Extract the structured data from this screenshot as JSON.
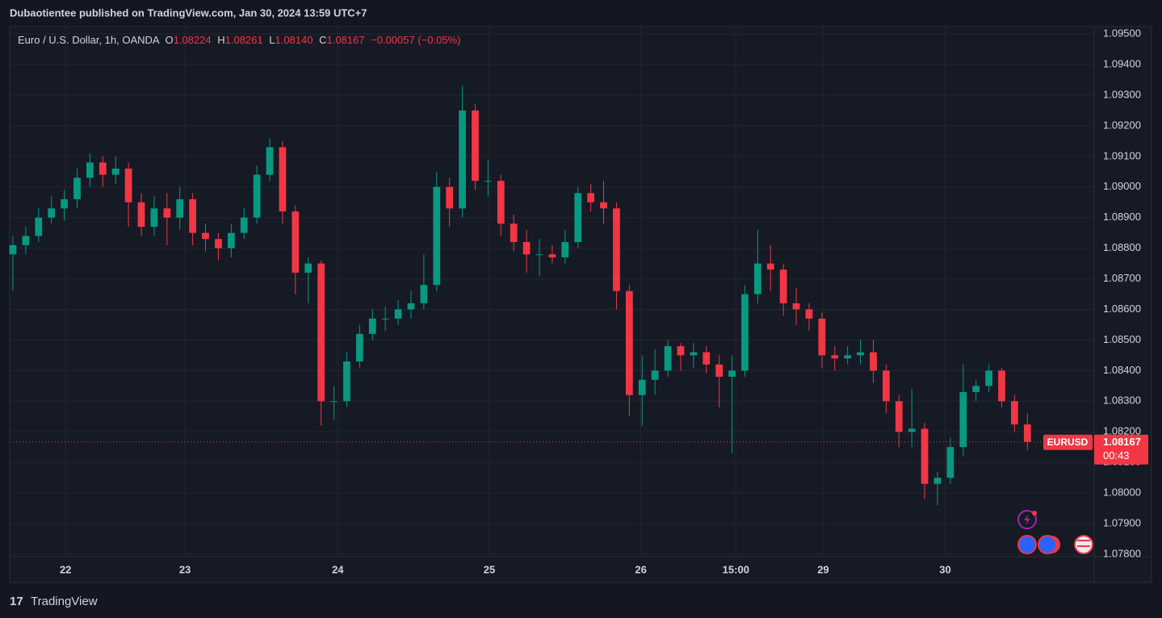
{
  "header": {
    "published": "Dubaotientee published on TradingView.com, Jan 30, 2024 13:59 UTC+7"
  },
  "chart_data": {
    "type": "candlestick",
    "legend": {
      "symbol": "Euro / U.S. Dollar, 1h, OANDA",
      "o_label": "O",
      "o": "1.08224",
      "h_label": "H",
      "h": "1.08261",
      "l_label": "L",
      "l": "1.08140",
      "c_label": "C",
      "c": "1.08167",
      "change": "−0.00057 (−0.05%)"
    },
    "up_color": "#089981",
    "down_color": "#f23645",
    "candles": [
      [
        1.0878,
        1.0884,
        1.0866,
        1.0881
      ],
      [
        1.0881,
        1.0887,
        1.0878,
        1.0884
      ],
      [
        1.0884,
        1.0893,
        1.0882,
        1.089
      ],
      [
        1.089,
        1.0897,
        1.0888,
        1.0893
      ],
      [
        1.0893,
        1.0899,
        1.0889,
        1.0896
      ],
      [
        1.0896,
        1.0906,
        1.0893,
        1.0903
      ],
      [
        1.0903,
        1.0911,
        1.09,
        1.0908
      ],
      [
        1.0908,
        1.091,
        1.09,
        1.0904
      ],
      [
        1.0904,
        1.091,
        1.0901,
        1.0906
      ],
      [
        1.0906,
        1.0908,
        1.0887,
        1.0895
      ],
      [
        1.0895,
        1.0898,
        1.0884,
        1.0887
      ],
      [
        1.0887,
        1.0897,
        1.0884,
        1.0893
      ],
      [
        1.0893,
        1.0898,
        1.0881,
        1.089
      ],
      [
        1.089,
        1.09,
        1.0886,
        1.0896
      ],
      [
        1.0896,
        1.0898,
        1.0881,
        1.0885
      ],
      [
        1.0885,
        1.0888,
        1.0879,
        1.0883
      ],
      [
        1.0883,
        1.0885,
        1.0876,
        1.088
      ],
      [
        1.088,
        1.0888,
        1.0877,
        1.0885
      ],
      [
        1.0885,
        1.0893,
        1.0883,
        1.089
      ],
      [
        1.089,
        1.0907,
        1.0888,
        1.0904
      ],
      [
        1.0904,
        1.0916,
        1.0902,
        1.0913
      ],
      [
        1.0913,
        1.0915,
        1.0888,
        1.0892
      ],
      [
        1.0892,
        1.0894,
        1.0865,
        1.0872
      ],
      [
        1.0872,
        1.0877,
        1.0862,
        1.0875
      ],
      [
        1.0875,
        1.0876,
        1.0822,
        1.083
      ],
      [
        1.083,
        1.0835,
        1.0824,
        1.083
      ],
      [
        1.083,
        1.0846,
        1.0828,
        1.0843
      ],
      [
        1.0843,
        1.0855,
        1.0841,
        1.0852
      ],
      [
        1.0852,
        1.086,
        1.085,
        1.0857
      ],
      [
        1.0857,
        1.0861,
        1.0853,
        1.0857
      ],
      [
        1.0857,
        1.0863,
        1.0855,
        1.086
      ],
      [
        1.086,
        1.0866,
        1.0857,
        1.0862
      ],
      [
        1.0862,
        1.0878,
        1.086,
        1.0868
      ],
      [
        1.0868,
        1.0905,
        1.0866,
        1.09
      ],
      [
        1.09,
        1.0903,
        1.0887,
        1.0893
      ],
      [
        1.0893,
        1.0933,
        1.089,
        1.0925
      ],
      [
        1.0925,
        1.0927,
        1.0899,
        1.0902
      ],
      [
        1.0902,
        1.0909,
        1.0897,
        1.0902
      ],
      [
        1.0902,
        1.0904,
        1.0884,
        1.0888
      ],
      [
        1.0888,
        1.0891,
        1.0879,
        1.0882
      ],
      [
        1.0882,
        1.0886,
        1.0872,
        1.0878
      ],
      [
        1.0878,
        1.0883,
        1.0871,
        1.0878
      ],
      [
        1.0878,
        1.0881,
        1.0875,
        1.0877
      ],
      [
        1.0877,
        1.0886,
        1.0875,
        1.0882
      ],
      [
        1.0882,
        1.09,
        1.088,
        1.0898
      ],
      [
        1.0898,
        1.0901,
        1.0892,
        1.0895
      ],
      [
        1.0895,
        1.0902,
        1.0888,
        1.0893
      ],
      [
        1.0893,
        1.0895,
        1.086,
        1.0866
      ],
      [
        1.0866,
        1.0868,
        1.0825,
        1.0832
      ],
      [
        1.0832,
        1.0845,
        1.0822,
        1.0837
      ],
      [
        1.0837,
        1.0847,
        1.0832,
        1.084
      ],
      [
        1.084,
        1.085,
        1.0838,
        1.0848
      ],
      [
        1.0848,
        1.0849,
        1.084,
        1.0845
      ],
      [
        1.0845,
        1.0849,
        1.0841,
        1.0846
      ],
      [
        1.0846,
        1.0848,
        1.0839,
        1.0842
      ],
      [
        1.0842,
        1.0845,
        1.0828,
        1.0838
      ],
      [
        1.0838,
        1.0845,
        1.0813,
        1.084
      ],
      [
        1.084,
        1.0868,
        1.0838,
        1.0865
      ],
      [
        1.0865,
        1.0886,
        1.0862,
        1.0875
      ],
      [
        1.0875,
        1.0881,
        1.0866,
        1.0873
      ],
      [
        1.0873,
        1.0875,
        1.0858,
        1.0862
      ],
      [
        1.0862,
        1.0867,
        1.0855,
        1.086
      ],
      [
        1.086,
        1.0862,
        1.0853,
        1.0857
      ],
      [
        1.0857,
        1.0859,
        1.0841,
        1.0845
      ],
      [
        1.0845,
        1.0848,
        1.084,
        1.0844
      ],
      [
        1.0844,
        1.0848,
        1.0842,
        1.0845
      ],
      [
        1.0845,
        1.085,
        1.0842,
        1.0846
      ],
      [
        1.0846,
        1.085,
        1.0836,
        1.084
      ],
      [
        1.084,
        1.0842,
        1.0826,
        1.083
      ],
      [
        1.083,
        1.0832,
        1.0815,
        1.082
      ],
      [
        1.082,
        1.0834,
        1.0815,
        1.0821
      ],
      [
        1.0821,
        1.0823,
        1.0798,
        1.0803
      ],
      [
        1.0803,
        1.0807,
        1.0796,
        1.0805
      ],
      [
        1.0805,
        1.0818,
        1.0803,
        1.0815
      ],
      [
        1.0815,
        1.0842,
        1.0812,
        1.0833
      ],
      [
        1.0833,
        1.0837,
        1.083,
        1.0835
      ],
      [
        1.0835,
        1.0842,
        1.0833,
        1.084
      ],
      [
        1.084,
        1.0841,
        1.0828,
        1.083
      ],
      [
        1.083,
        1.0832,
        1.082,
        1.08224
      ],
      [
        1.08224,
        1.08261,
        1.0814,
        1.08167
      ]
    ],
    "xlim": [
      -0.25,
      84.2
    ],
    "xticks": [
      {
        "value": 4.1,
        "label": "22"
      },
      {
        "value": 13.4,
        "label": "23"
      },
      {
        "value": 25.3,
        "label": "24"
      },
      {
        "value": 37.1,
        "label": "25"
      },
      {
        "value": 48.9,
        "label": "26"
      },
      {
        "value": 56.3,
        "label": "15:00"
      },
      {
        "value": 63.1,
        "label": "29"
      },
      {
        "value": 72.6,
        "label": "30"
      }
    ],
    "ylim": [
      1.07792,
      1.09524
    ],
    "yticks": [
      {
        "value": 1.095,
        "label": "1.09500"
      },
      {
        "value": 1.094,
        "label": "1.09400"
      },
      {
        "value": 1.093,
        "label": "1.09300"
      },
      {
        "value": 1.092,
        "label": "1.09200"
      },
      {
        "value": 1.091,
        "label": "1.09100"
      },
      {
        "value": 1.09,
        "label": "1.09000"
      },
      {
        "value": 1.089,
        "label": "1.08900"
      },
      {
        "value": 1.088,
        "label": "1.08800"
      },
      {
        "value": 1.087,
        "label": "1.08700"
      },
      {
        "value": 1.086,
        "label": "1.08600"
      },
      {
        "value": 1.085,
        "label": "1.08500"
      },
      {
        "value": 1.084,
        "label": "1.08400"
      },
      {
        "value": 1.083,
        "label": "1.08300"
      },
      {
        "value": 1.082,
        "label": "1.08200"
      },
      {
        "value": 1.081,
        "label": "1.08100"
      },
      {
        "value": 1.08,
        "label": "1.08000"
      },
      {
        "value": 1.079,
        "label": "1.07900"
      },
      {
        "value": 1.078,
        "label": "1.07800"
      }
    ],
    "grid": true,
    "last_price": 1.08167,
    "price_label": {
      "symbol": "EURUSD",
      "countdown": "00:43"
    }
  },
  "footer": {
    "brand": "TradingView"
  }
}
